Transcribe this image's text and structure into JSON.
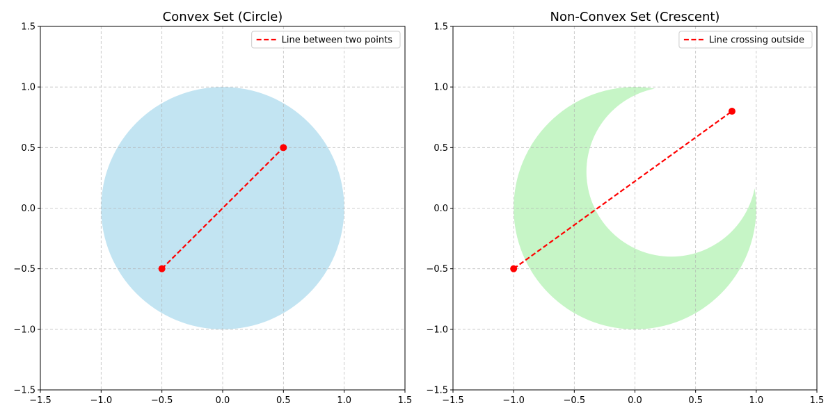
{
  "colors": {
    "circle_fill": "#c2e4f2",
    "crescent_fill": "#c6f5c6",
    "line": "#ff0000",
    "grid": "#b0b0b0"
  },
  "chart_data": [
    {
      "type": "scatter",
      "title": "Convex Set (Circle)",
      "xlim": [
        -1.5,
        1.5
      ],
      "ylim": [
        -1.5,
        1.5
      ],
      "ticks": [
        -1.5,
        -1.0,
        -0.5,
        0.0,
        0.5,
        1.0,
        1.5
      ],
      "tick_labels": [
        "−1.5",
        "−1.0",
        "−0.5",
        "0.0",
        "0.5",
        "1.0",
        "1.5"
      ],
      "grid": true,
      "legend_position": "top-right",
      "shape": {
        "kind": "circle",
        "center": [
          0,
          0
        ],
        "radius": 1.0,
        "fill": "#c2e4f2"
      },
      "series": [
        {
          "name": "Line between two points",
          "x": [
            -0.5,
            0.5
          ],
          "y": [
            -0.5,
            0.5
          ],
          "style": "dashed",
          "color": "#ff0000"
        }
      ]
    },
    {
      "type": "scatter",
      "title": "Non-Convex Set (Crescent)",
      "xlim": [
        -1.5,
        1.5
      ],
      "ylim": [
        -1.5,
        1.5
      ],
      "ticks": [
        -1.5,
        -1.0,
        -0.5,
        0.0,
        0.5,
        1.0,
        1.5
      ],
      "tick_labels": [
        "−1.5",
        "−1.0",
        "−0.5",
        "0.0",
        "0.5",
        "1.0",
        "1.5"
      ],
      "grid": true,
      "legend_position": "top-right",
      "shape": {
        "kind": "crescent",
        "outer_center": [
          0,
          0
        ],
        "outer_radius": 1.0,
        "inner_center": [
          0.3,
          0.3
        ],
        "inner_radius": 0.7,
        "fill": "#c6f5c6"
      },
      "series": [
        {
          "name": "Line crossing outside",
          "x": [
            -1.0,
            0.8
          ],
          "y": [
            -0.5,
            0.8
          ],
          "style": "dashed",
          "color": "#ff0000"
        }
      ]
    }
  ]
}
